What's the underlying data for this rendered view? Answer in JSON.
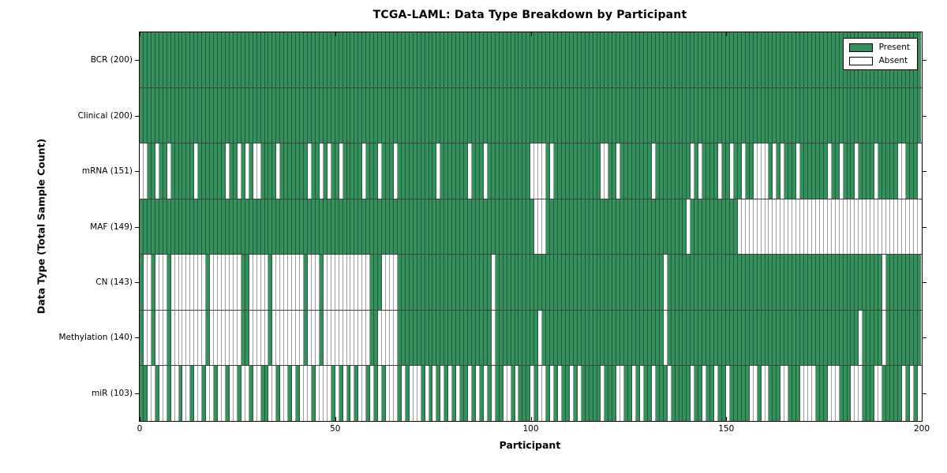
{
  "title": "TCGA-LAML: Data Type Breakdown by Participant",
  "legend": {
    "present_label": "Present",
    "absent_label": "Absent"
  },
  "colors": {
    "present": "#35915C",
    "absent": "#FFFFFF",
    "axis": "#000000"
  },
  "chart_data": {
    "type": "heatmap",
    "title": "TCGA-LAML: Data Type Breakdown by Participant",
    "xlabel": "Participant",
    "ylabel": "Data Type (Total Sample Count)",
    "x_range": [
      0,
      200
    ],
    "x_ticks": [
      0,
      50,
      100,
      150,
      200
    ],
    "n_participants": 200,
    "grid": false,
    "legend_position": "upper right",
    "legend_entries": [
      {
        "label": "Present",
        "color": "#35915C"
      },
      {
        "label": "Absent",
        "color": "#FFFFFF"
      }
    ],
    "rows": [
      {
        "name": "BCR",
        "label": "BCR (200)",
        "present_count": 200,
        "absent_columns": []
      },
      {
        "name": "Clinical",
        "label": "Clinical (200)",
        "present_count": 200,
        "absent_columns": []
      },
      {
        "name": "mRNA",
        "label": "mRNA (151)",
        "present_count": 151,
        "absent_columns": [
          0,
          1,
          4,
          7,
          14,
          22,
          25,
          27,
          29,
          30,
          35,
          43,
          46,
          48,
          51,
          57,
          61,
          65,
          76,
          84,
          88,
          100,
          101,
          102,
          103,
          105,
          118,
          119,
          122,
          131,
          141,
          143,
          148,
          151,
          154,
          157,
          158,
          159,
          160,
          162,
          164,
          168,
          176,
          179,
          183,
          188,
          194,
          195,
          199
        ]
      },
      {
        "name": "MAF",
        "label": "MAF (149)",
        "present_count": 149,
        "absent_columns": [
          101,
          102,
          103,
          140,
          153,
          154,
          155,
          156,
          157,
          158,
          159,
          160,
          161,
          162,
          163,
          164,
          165,
          166,
          167,
          168,
          169,
          170,
          171,
          172,
          173,
          174,
          175,
          176,
          177,
          178,
          179,
          180,
          181,
          182,
          183,
          184,
          185,
          186,
          187,
          188,
          189,
          190,
          191,
          192,
          193,
          194,
          195,
          196,
          197,
          198,
          199
        ]
      },
      {
        "name": "CN",
        "label": "CN (143)",
        "present_count": 143,
        "absent_columns": [
          1,
          2,
          4,
          5,
          6,
          8,
          9,
          10,
          11,
          12,
          13,
          14,
          15,
          16,
          18,
          19,
          20,
          21,
          22,
          23,
          24,
          25,
          28,
          29,
          30,
          31,
          32,
          34,
          35,
          36,
          37,
          38,
          39,
          40,
          41,
          43,
          44,
          45,
          47,
          48,
          49,
          50,
          51,
          52,
          53,
          54,
          55,
          56,
          57,
          58,
          62,
          63,
          64,
          65,
          90,
          134,
          190
        ]
      },
      {
        "name": "Methylation",
        "label": "Methylation (140)",
        "present_count": 140,
        "absent_columns": [
          1,
          2,
          4,
          5,
          6,
          8,
          9,
          10,
          11,
          12,
          13,
          14,
          15,
          16,
          18,
          19,
          20,
          21,
          22,
          23,
          24,
          25,
          28,
          29,
          30,
          31,
          32,
          34,
          35,
          36,
          37,
          38,
          39,
          40,
          41,
          43,
          44,
          45,
          47,
          48,
          49,
          50,
          51,
          52,
          53,
          54,
          55,
          56,
          57,
          58,
          61,
          62,
          63,
          64,
          65,
          90,
          102,
          134,
          184,
          190
        ]
      },
      {
        "name": "miR",
        "label": "miR (103)",
        "present_count": 103,
        "absent_columns": [
          2,
          3,
          5,
          6,
          8,
          9,
          11,
          12,
          14,
          15,
          17,
          18,
          20,
          21,
          23,
          24,
          26,
          27,
          29,
          30,
          33,
          34,
          36,
          37,
          39,
          41,
          42,
          43,
          45,
          46,
          47,
          48,
          50,
          52,
          54,
          56,
          57,
          59,
          61,
          63,
          64,
          65,
          67,
          69,
          70,
          71,
          73,
          75,
          77,
          79,
          81,
          84,
          86,
          88,
          90,
          93,
          94,
          96,
          100,
          102,
          103,
          105,
          107,
          110,
          112,
          118,
          122,
          123,
          126,
          128,
          131,
          135,
          141,
          144,
          147,
          150,
          156,
          157,
          159,
          160,
          164,
          165,
          169,
          170,
          171,
          172,
          176,
          177,
          178,
          182,
          183,
          184,
          188,
          189,
          195,
          197,
          199
        ]
      }
    ]
  }
}
